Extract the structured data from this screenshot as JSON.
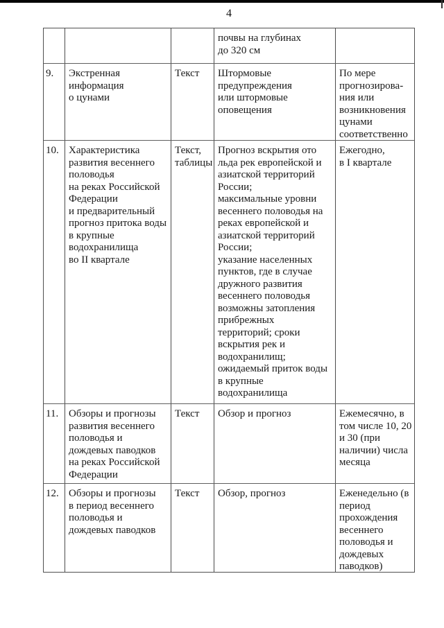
{
  "page": {
    "number": "4"
  },
  "table": {
    "rows": [
      {
        "cells": [
          "",
          "",
          "",
          "почвы на глубинах\nдо 320 см",
          ""
        ]
      },
      {
        "cells": [
          "9.",
          "Экстренная\nинформация\nо цунами",
          "Текст",
          "Штормовые\nпредупреждения\nили штормовые\nоповещения",
          "По мере\nпрогнозирова-\nния или\nвозникновения\nцунами\nсоответственно"
        ]
      },
      {
        "cells": [
          "10.",
          "Характеристика\nразвития весеннего\nполоводья\nна реках Российской\nФедерации\nи предварительный\nпрогноз притока воды\nв крупные\nводохранилища\nво II квартале",
          "Текст,\nтаблицы",
          "Прогноз вскрытия ото\nльда рек европейской и\nазиатской территорий\nРоссии;\nмаксимальные уровни\nвесеннего половодья на\nреках европейской и\nазиатской территорий\nРоссии;\nуказание населенных\nпунктов, где в случае\nдружного развития\nвесеннего половодья\nвозможны затопления\nприбрежных\nтерриторий; сроки\nвскрытия рек и\nводохранилищ;\nожидаемый приток воды\nв крупные\nводохранилища",
          "Ежегодно,\nв I квартале"
        ]
      },
      {
        "cells": [
          "11.",
          "Обзоры и прогнозы\nразвития весеннего\nполоводья и\nдождевых паводков\nна реках Российской\nФедерации",
          "Текст",
          "Обзор и прогноз",
          "Ежемесячно, в\nтом числе 10, 20\nи 30 (при\nналичии) числа\nмесяца"
        ]
      },
      {
        "cells": [
          "12.",
          "Обзоры и прогнозы\nв период весеннего\nполоводья и\nдождевых паводков",
          "Текст",
          "Обзор, прогноз",
          "Еженедельно (в\nпериод\nпрохождения\nвесеннего\nполоводья и\nдождевых\nпаводков)"
        ]
      }
    ]
  }
}
